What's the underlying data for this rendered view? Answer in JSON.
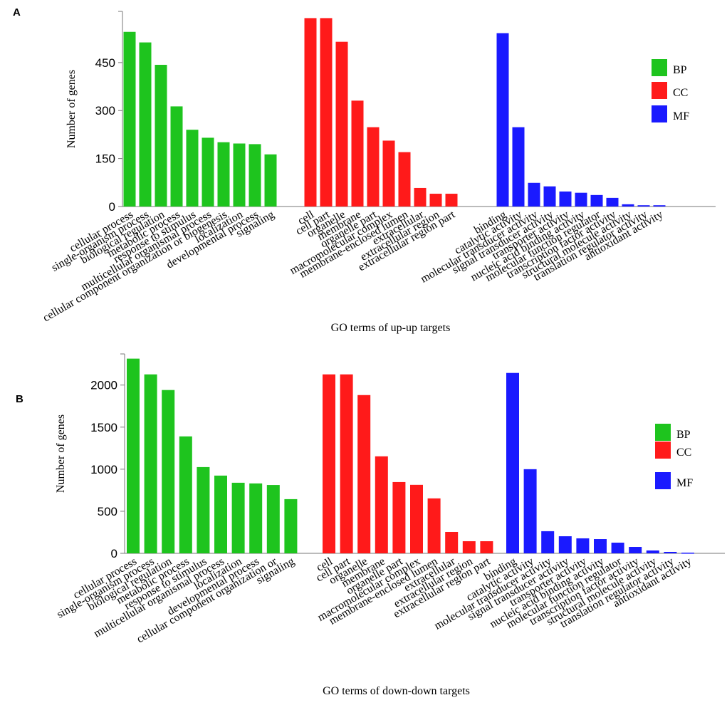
{
  "chart_data": [
    {
      "type": "bar",
      "panel": "A",
      "xlabel": "GO terms of up-up targets",
      "ylabel": "Number of genes",
      "ylim": [
        0,
        610
      ],
      "yticks": [
        0,
        150,
        300,
        450
      ],
      "series": [
        {
          "name": "BP",
          "color": "#1ec41e",
          "categories": [
            "cellular process",
            "single-organism process",
            "biological regulation",
            "metabolic process",
            "response to stimulus",
            "multicellular organismal process",
            "cellular component organization or biogenesis",
            "localization",
            "developmental process",
            "signaling"
          ],
          "values": [
            546,
            513,
            443,
            313,
            240,
            215,
            201,
            197,
            195,
            163
          ]
        },
        {
          "name": "CC",
          "color": "#ff1a1a",
          "categories": [
            "cell",
            "cell part",
            "organelle",
            "membrane",
            "organelle part",
            "macromolecular complex",
            "membrane-enclosed lumen",
            "extracellular",
            "extracellular region",
            "extracellular region part"
          ],
          "values": [
            589,
            589,
            515,
            331,
            248,
            206,
            170,
            58,
            40,
            40
          ]
        },
        {
          "name": "MF",
          "color": "#1a1aff",
          "categories": [
            "binding",
            "catalytic activity",
            "molecular transducer activity",
            "signal transducer activity",
            "transporter activity",
            "nucleic acid binding activity",
            "molecular function regulator",
            "transcription factor activity",
            "structural molecule activity",
            "translation regulator activity",
            "antioxidant activity"
          ],
          "values": [
            542,
            248,
            74,
            63,
            47,
            43,
            36,
            27,
            7,
            4,
            4
          ]
        }
      ]
    },
    {
      "type": "bar",
      "panel": "B",
      "xlabel": "GO terms of down-down targets",
      "ylabel": "Number of genes",
      "ylim": [
        0,
        2370
      ],
      "yticks": [
        0,
        500,
        1000,
        1500,
        2000
      ],
      "series": [
        {
          "name": "BP",
          "color": "#1ec41e",
          "categories": [
            "cellular process",
            "single-organism process",
            "biological regulation",
            "metabolic process",
            "response to stimulus",
            "multicellular organismal process",
            "localization",
            "developmental process",
            "cellular component organization or",
            "signaling"
          ],
          "values": [
            2314,
            2127,
            1941,
            1390,
            1025,
            924,
            839,
            831,
            812,
            644
          ]
        },
        {
          "name": "CC",
          "color": "#ff1a1a",
          "categories": [
            "cell",
            "cell part",
            "organelle",
            "membrane",
            "organelle part",
            "macromolecular complex",
            "membrane-enclosed lumen",
            "extracellular",
            "extracellular region",
            "extracellular region part"
          ],
          "values": [
            2127,
            2127,
            1881,
            1153,
            847,
            814,
            653,
            254,
            144,
            144
          ]
        },
        {
          "name": "MF",
          "color": "#1a1aff",
          "categories": [
            "binding",
            "catalytic activity",
            "molecular transducer activity",
            "signal transducer activity",
            "transporter activity",
            "nucleic acid binding activity",
            "molecular function regulator",
            "transcription factor activity",
            "structural molecule activity",
            "translation regulator activity",
            "antioxidant activity"
          ],
          "values": [
            2144,
            1000,
            263,
            203,
            178,
            169,
            127,
            76,
            34,
            17,
            8
          ]
        }
      ]
    }
  ]
}
